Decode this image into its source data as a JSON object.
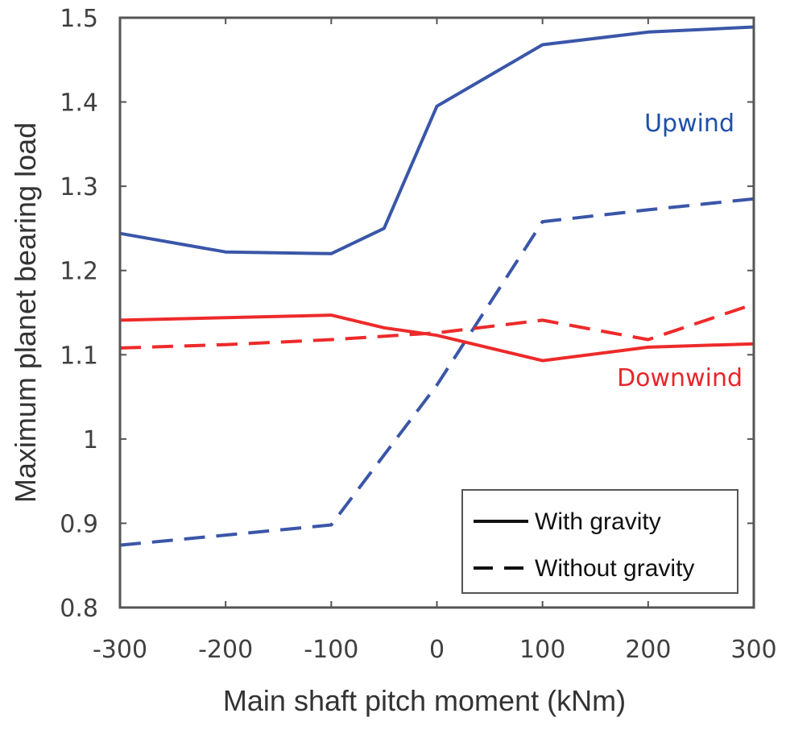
{
  "chart_data": {
    "type": "line",
    "title": "",
    "xlabel": "Main shaft pitch moment (kNm)",
    "ylabel": "Maximum planet bearing load",
    "xlim": [
      -300,
      300
    ],
    "ylim": [
      0.8,
      1.5
    ],
    "xticks": [
      -300,
      -200,
      -100,
      0,
      100,
      200,
      300
    ],
    "xtick_labels": [
      "-300",
      "-200",
      "-100",
      "0",
      "100",
      "200",
      "300"
    ],
    "yticks": [
      0.8,
      0.9,
      1.0,
      1.1,
      1.2,
      1.3,
      1.4,
      1.5
    ],
    "ytick_labels": [
      "0.8",
      "0.9",
      "1",
      "1.1",
      "1.2",
      "1.3",
      "1.4",
      "1.5"
    ],
    "grid": false,
    "legend": {
      "placement": "bottom-right",
      "entries": [
        {
          "label": "With gravity",
          "style": "solid"
        },
        {
          "label": "Without gravity",
          "style": "dashed"
        }
      ]
    },
    "annotations": [
      {
        "text": "Upwind",
        "color": "#1f4fa8",
        "near": {
          "x": 270,
          "y": 1.38
        }
      },
      {
        "text": "Downwind",
        "color": "#e8262a",
        "near": {
          "x": 265,
          "y": 1.07
        }
      }
    ],
    "series": [
      {
        "name": "Upwind with gravity",
        "group": "Upwind",
        "style": "solid",
        "color": "#3a56a8",
        "x": [
          -300,
          -200,
          -100,
          -50,
          0,
          100,
          200,
          300
        ],
        "y": [
          1.244,
          1.222,
          1.22,
          1.25,
          1.395,
          1.468,
          1.483,
          1.489
        ]
      },
      {
        "name": "Upwind without gravity",
        "group": "Upwind",
        "style": "dashed",
        "color": "#3a56a8",
        "x": [
          -300,
          -200,
          -100,
          0,
          100,
          200,
          300
        ],
        "y": [
          0.874,
          0.886,
          0.898,
          1.064,
          1.258,
          1.272,
          1.285
        ]
      },
      {
        "name": "Downwind with gravity",
        "group": "Downwind",
        "style": "solid",
        "color": "#ee2a2a",
        "x": [
          -300,
          -200,
          -100,
          -50,
          0,
          100,
          200,
          300
        ],
        "y": [
          1.141,
          1.144,
          1.147,
          1.132,
          1.123,
          1.093,
          1.109,
          1.113
        ]
      },
      {
        "name": "Downwind without gravity",
        "group": "Downwind",
        "style": "dashed",
        "color": "#ee2a2a",
        "x": [
          -300,
          -200,
          -100,
          0,
          100,
          200,
          300
        ],
        "y": [
          1.108,
          1.112,
          1.118,
          1.126,
          1.141,
          1.118,
          1.16
        ]
      }
    ]
  }
}
